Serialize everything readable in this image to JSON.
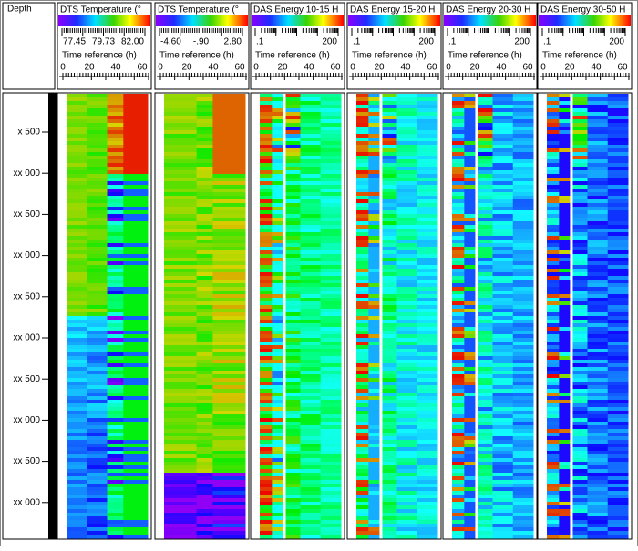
{
  "depth_header": "Depth",
  "depth_labels": [
    "x 500",
    "xx 000",
    "xx 500",
    "xx 000",
    "xx 500",
    "xx 000",
    "xx 500",
    "xx 000",
    "xx 500",
    "xx 000"
  ],
  "tracks": [
    {
      "title": "DTS Temperature (°",
      "scale_labels": [
        "77.45",
        "79.73",
        "82.00"
      ],
      "time_label": "Time reference (h)",
      "time_ticks": [
        "0",
        "20",
        "40",
        "60"
      ]
    },
    {
      "title": "DTS Temperature (°",
      "scale_labels": [
        "-4.60",
        "-.90",
        "2.80"
      ],
      "time_label": "Time reference (h)",
      "time_ticks": [
        "0",
        "20",
        "40",
        "60"
      ]
    },
    {
      "title": "DAS Energy 10-15 H",
      "scale_labels": [
        ".1",
        "200"
      ],
      "time_label": "Time reference (h)",
      "time_ticks": [
        "0",
        "20",
        "40",
        "60"
      ]
    },
    {
      "title": "DAS Energy 15-20 H",
      "scale_labels": [
        ".1",
        "200"
      ],
      "time_label": "Time reference (h)",
      "time_ticks": [
        "0",
        "20",
        "40",
        "60"
      ]
    },
    {
      "title": "DAS Energy 20-30 H",
      "scale_labels": [
        ".1",
        "200"
      ],
      "time_label": "Time reference (h)",
      "time_ticks": [
        "0",
        "20",
        "40",
        "60"
      ]
    },
    {
      "title": "DAS Energy 30-50 H",
      "scale_labels": [
        ".1",
        "200"
      ],
      "time_label": "Time reference (h)",
      "time_ticks": [
        "0",
        "20",
        "40",
        "60"
      ]
    }
  ]
}
